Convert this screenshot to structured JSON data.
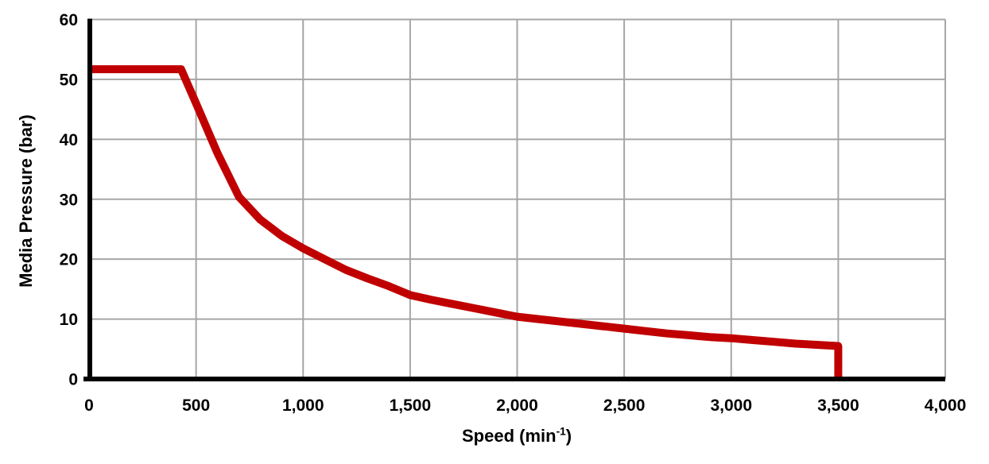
{
  "chart_data": {
    "type": "line",
    "title": "",
    "xlabel": "Speed (min⁻¹)",
    "xlabel_parts": {
      "base": "Speed (min",
      "sup": "-1",
      "close": ")"
    },
    "ylabel": "Media Pressure (bar)",
    "xlim": [
      0,
      4000
    ],
    "ylim": [
      0,
      60
    ],
    "x_ticks": [
      0,
      500,
      1000,
      1500,
      2000,
      2500,
      3000,
      3500,
      4000
    ],
    "x_tick_labels": [
      "0",
      "500",
      "1,000",
      "1,500",
      "2,000",
      "2,500",
      "3,000",
      "3,500",
      "4,000"
    ],
    "y_ticks": [
      0,
      10,
      20,
      30,
      40,
      50,
      60
    ],
    "y_tick_labels": [
      "0",
      "10",
      "20",
      "30",
      "40",
      "50",
      "60"
    ],
    "grid": true,
    "legend": "none",
    "series": [
      {
        "color": "#C00000",
        "line_width": 10,
        "points": [
          [
            0,
            51.7
          ],
          [
            430,
            51.7
          ],
          [
            500,
            46.0
          ],
          [
            600,
            37.7
          ],
          [
            700,
            30.4
          ],
          [
            800,
            26.6
          ],
          [
            900,
            23.9
          ],
          [
            1000,
            21.8
          ],
          [
            1100,
            20.0
          ],
          [
            1200,
            18.2
          ],
          [
            1300,
            16.8
          ],
          [
            1400,
            15.5
          ],
          [
            1500,
            14.0
          ],
          [
            1600,
            13.2
          ],
          [
            1700,
            12.5
          ],
          [
            1800,
            11.8
          ],
          [
            1900,
            11.1
          ],
          [
            2000,
            10.4
          ],
          [
            2100,
            10.0
          ],
          [
            2200,
            9.6
          ],
          [
            2300,
            9.2
          ],
          [
            2400,
            8.8
          ],
          [
            2500,
            8.4
          ],
          [
            2600,
            8.0
          ],
          [
            2700,
            7.6
          ],
          [
            2800,
            7.3
          ],
          [
            2900,
            7.0
          ],
          [
            3000,
            6.8
          ],
          [
            3100,
            6.5
          ],
          [
            3200,
            6.2
          ],
          [
            3300,
            5.9
          ],
          [
            3400,
            5.7
          ],
          [
            3500,
            5.5
          ],
          [
            3500,
            0
          ]
        ]
      }
    ],
    "colors": {
      "line": "#C00000",
      "grid": "#A6A6A6",
      "axis": "#000000",
      "text": "#000000",
      "background": "#FFFFFF"
    }
  }
}
